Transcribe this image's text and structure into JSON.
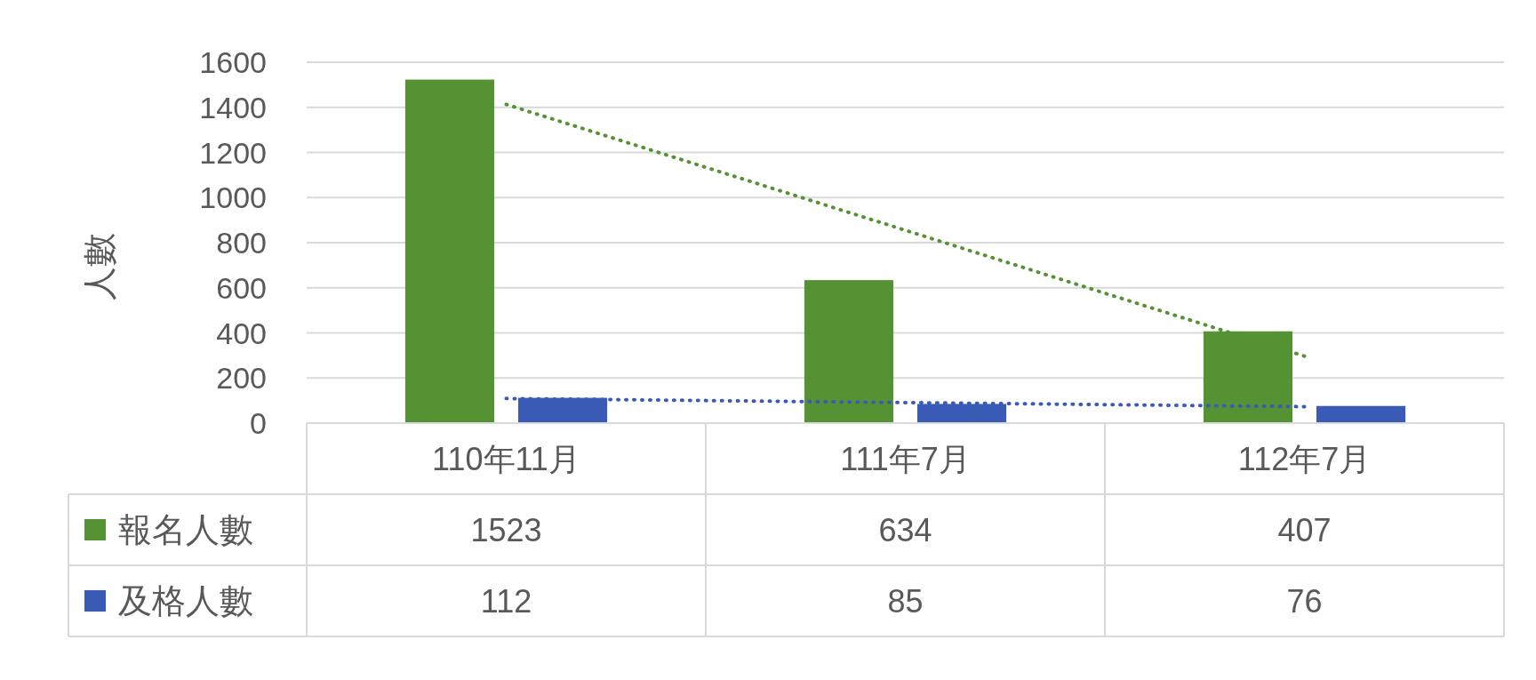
{
  "chart_data": {
    "type": "bar",
    "ylabel": "人數",
    "categories": [
      "110年11月",
      "111年7月",
      "112年7月"
    ],
    "series": [
      {
        "name": "報名人數",
        "color": "#559233",
        "values": [
          1523,
          634,
          407
        ],
        "value_labels": [
          "1523",
          "634",
          "407"
        ]
      },
      {
        "name": "及格人數",
        "color": "#3a5bb5",
        "values": [
          112,
          85,
          76
        ],
        "value_labels": [
          "112",
          "85",
          "76"
        ]
      },
      {
        "type": "line",
        "color": "#559233",
        "line_style": "dotted",
        "values": [
          1413,
          855,
          297
        ]
      },
      {
        "type": "line",
        "color": "#3a5bb5",
        "line_style": "dotted",
        "values": [
          109,
          91,
          73
        ]
      }
    ],
    "ylim": [
      0,
      1600
    ],
    "yticks": [
      0,
      200,
      400,
      600,
      800,
      1000,
      1200,
      1400,
      1600
    ],
    "grid": "y",
    "legend": "bottom"
  }
}
